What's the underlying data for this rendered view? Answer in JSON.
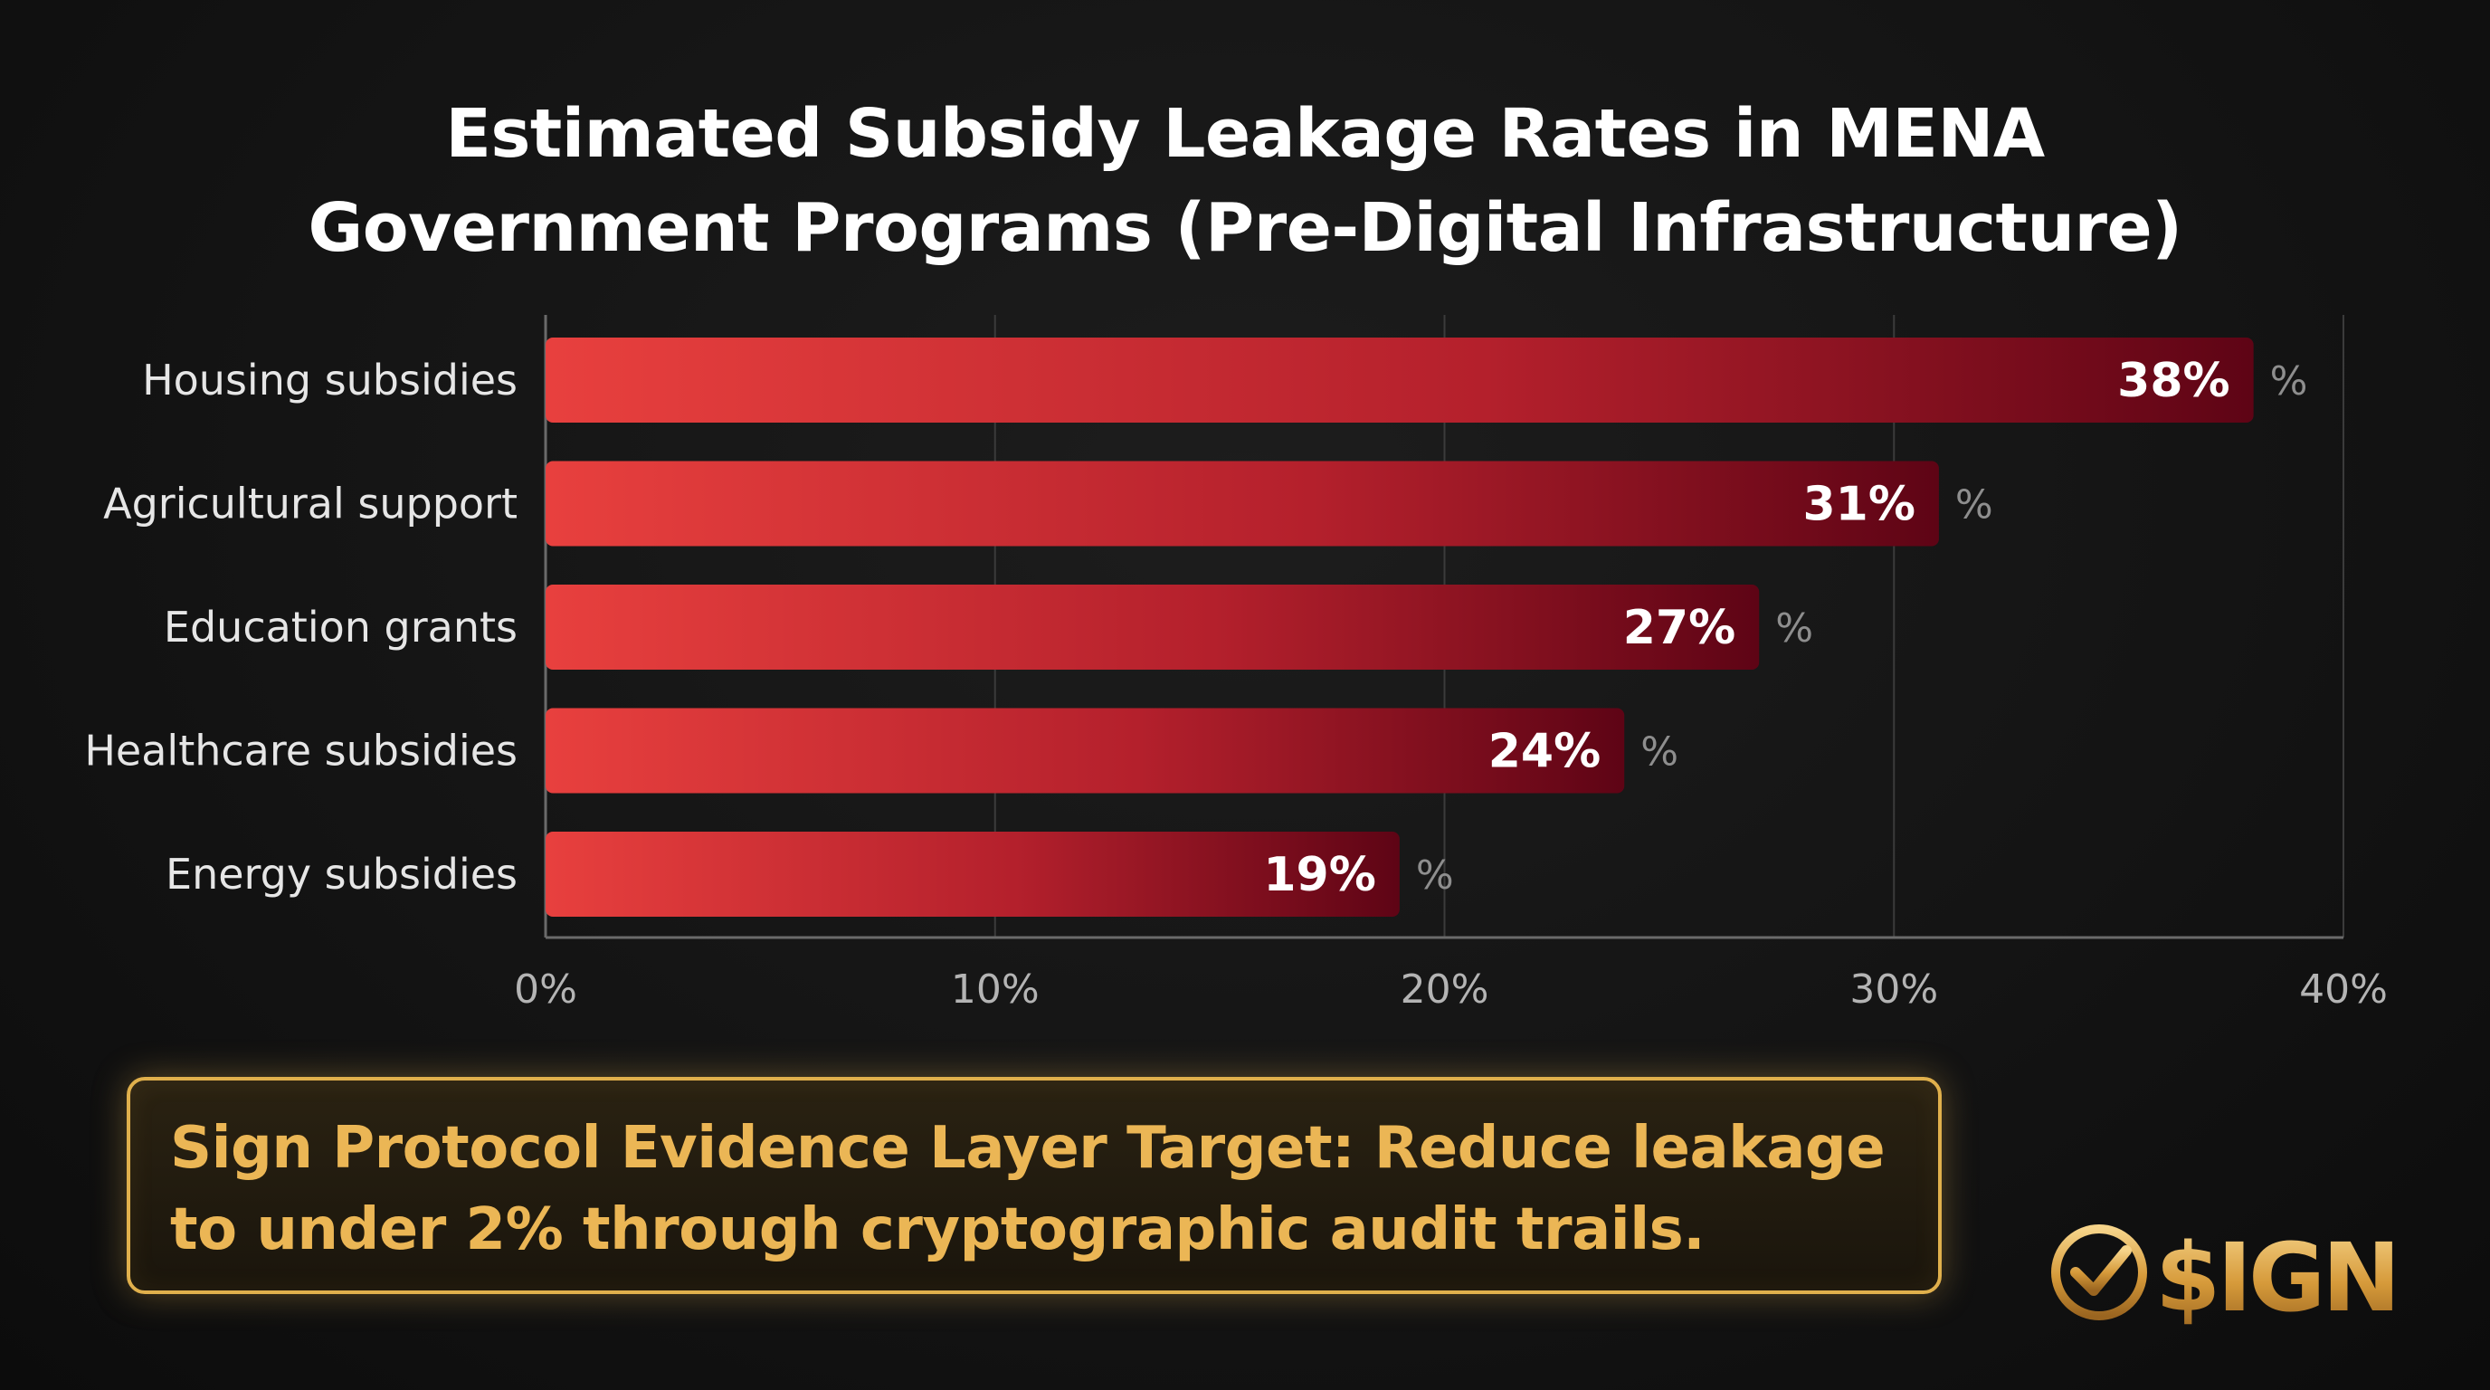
{
  "chart_data": {
    "type": "bar",
    "orientation": "horizontal",
    "title_lines": [
      "Estimated Subsidy Leakage Rates in MENA",
      "Government Programs (Pre-Digital Infrastructure)"
    ],
    "categories": [
      "Housing subsidies",
      "Agricultural support",
      "Education grants",
      "Healthcare subsidies",
      "Energy subsidies"
    ],
    "values": [
      38,
      31,
      27,
      24,
      19
    ],
    "data_labels": [
      "38%",
      "31%",
      "27%",
      "24%",
      "19%"
    ],
    "unit_suffix": "%",
    "xlim": [
      0,
      40
    ],
    "x_ticks": [
      {
        "value": 0,
        "label": "0%"
      },
      {
        "value": 10,
        "label": "10%"
      },
      {
        "value": 20,
        "label": "20%"
      },
      {
        "value": 30,
        "label": "30%"
      },
      {
        "value": 40,
        "label": "40%"
      }
    ],
    "grid": true,
    "legend": "none"
  },
  "callout": {
    "lines": [
      "Sign Protocol Evidence Layer Target: Reduce leakage",
      "to under 2% through cryptographic audit trails."
    ]
  },
  "brand": {
    "wordmark": "$IGN"
  },
  "colors": {
    "background": "#141414",
    "bar_start": "#e8403e",
    "bar_end": "#5e0415",
    "callout_gold": "#ebb655",
    "axis_text": "#b4b4b4"
  }
}
